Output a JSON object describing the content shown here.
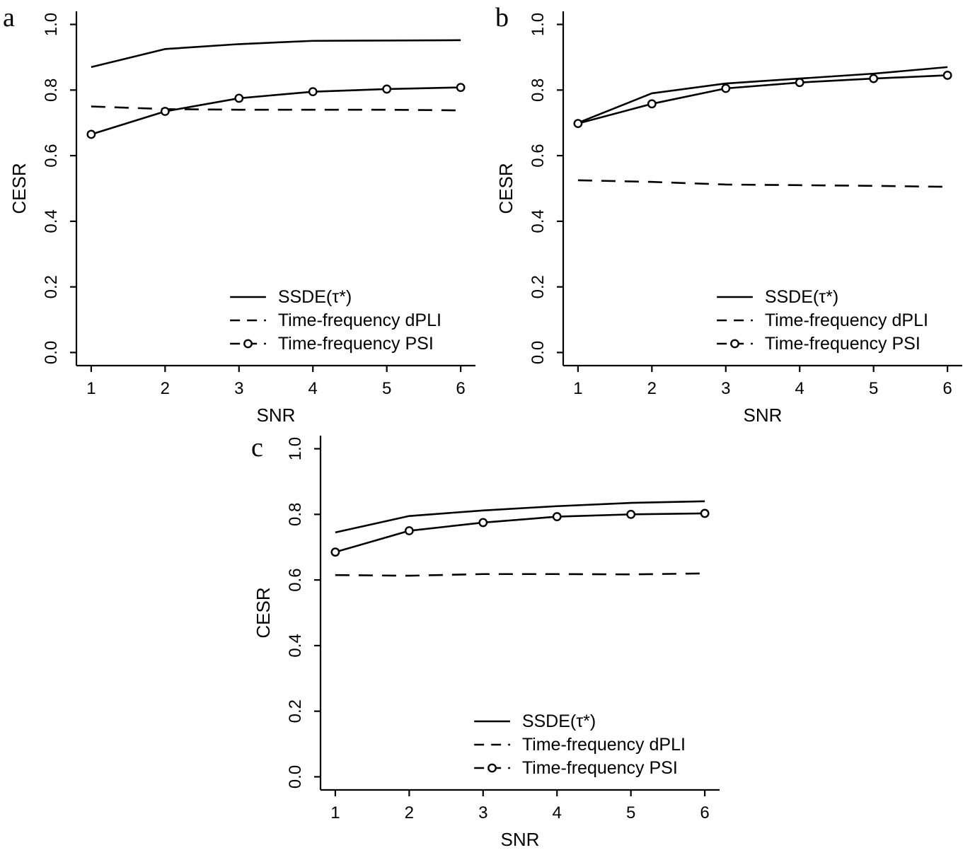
{
  "figure": {
    "background": "#ffffff",
    "line_color": "#000000",
    "text_color": "#000000"
  },
  "chart_data": [
    {
      "type": "line",
      "panel": "a",
      "title": "",
      "xlabel": "SNR",
      "ylabel": "CESR",
      "x": [
        1,
        2,
        3,
        4,
        5,
        6
      ],
      "xlim": [
        0.8,
        6.2
      ],
      "ylim": [
        0.0,
        1.0
      ],
      "yticks": [
        0.0,
        0.2,
        0.4,
        0.6,
        0.8,
        1.0
      ],
      "grid": false,
      "legend_position": "lower-right-inside",
      "series": [
        {
          "name": "SSDE(τ*)",
          "line": "solid",
          "marker": "none",
          "values": [
            0.87,
            0.925,
            0.94,
            0.95,
            0.951,
            0.952
          ]
        },
        {
          "name": "Time-frequency dPLI",
          "line": "dashed",
          "marker": "none",
          "values": [
            0.75,
            0.742,
            0.74,
            0.74,
            0.74,
            0.738
          ]
        },
        {
          "name": "Time-frequency PSI",
          "line": "solid",
          "marker": "open-circle",
          "legend_line": "dashed",
          "values": [
            0.665,
            0.735,
            0.775,
            0.795,
            0.803,
            0.808
          ]
        }
      ]
    },
    {
      "type": "line",
      "panel": "b",
      "title": "",
      "xlabel": "SNR",
      "ylabel": "CESR",
      "x": [
        1,
        2,
        3,
        4,
        5,
        6
      ],
      "xlim": [
        0.8,
        6.2
      ],
      "ylim": [
        0.0,
        1.0
      ],
      "yticks": [
        0.0,
        0.2,
        0.4,
        0.6,
        0.8,
        1.0
      ],
      "grid": false,
      "legend_position": "lower-right-inside",
      "series": [
        {
          "name": "SSDE(τ*)",
          "line": "solid",
          "marker": "none",
          "values": [
            0.7,
            0.79,
            0.82,
            0.835,
            0.85,
            0.87
          ]
        },
        {
          "name": "Time-frequency dPLI",
          "line": "dashed",
          "marker": "none",
          "values": [
            0.525,
            0.52,
            0.512,
            0.51,
            0.508,
            0.505
          ]
        },
        {
          "name": "Time-frequency PSI",
          "line": "solid",
          "marker": "open-circle",
          "legend_line": "dashed",
          "values": [
            0.698,
            0.758,
            0.805,
            0.823,
            0.835,
            0.845
          ]
        }
      ]
    },
    {
      "type": "line",
      "panel": "c",
      "title": "",
      "xlabel": "SNR",
      "ylabel": "CESR",
      "x": [
        1,
        2,
        3,
        4,
        5,
        6
      ],
      "xlim": [
        0.8,
        6.2
      ],
      "ylim": [
        0.0,
        1.0
      ],
      "yticks": [
        0.0,
        0.2,
        0.4,
        0.6,
        0.8,
        1.0
      ],
      "grid": false,
      "legend_position": "lower-right-inside",
      "series": [
        {
          "name": "SSDE(τ*)",
          "line": "solid",
          "marker": "none",
          "values": [
            0.745,
            0.795,
            0.812,
            0.825,
            0.835,
            0.84
          ]
        },
        {
          "name": "Time-frequency dPLI",
          "line": "dashed",
          "marker": "none",
          "values": [
            0.615,
            0.613,
            0.618,
            0.618,
            0.617,
            0.62
          ]
        },
        {
          "name": "Time-frequency PSI",
          "line": "solid",
          "marker": "open-circle",
          "legend_line": "dashed",
          "values": [
            0.685,
            0.75,
            0.775,
            0.793,
            0.8,
            0.803
          ]
        }
      ]
    }
  ]
}
